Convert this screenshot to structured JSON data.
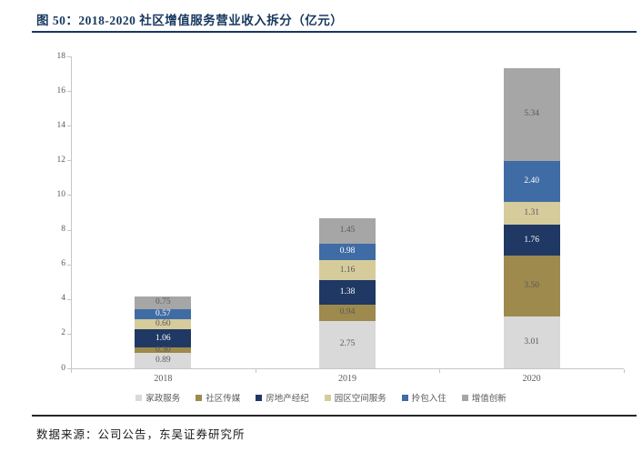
{
  "header": {
    "title": "图 50：2018-2020 社区增值服务营业收入拆分（亿元）"
  },
  "footer": {
    "source": "数据来源：公司公告，东吴证券研究所"
  },
  "colors": {
    "title_navy": "#17375e",
    "axis_gray": "#c6c6c6",
    "label_gray": "#595959",
    "divider_dark": "#262626"
  },
  "chart_data": {
    "type": "bar",
    "stacked": true,
    "title": "2018-2020 社区增值服务营业收入拆分（亿元）",
    "categories": [
      "2018",
      "2019",
      "2020"
    ],
    "series": [
      {
        "name": "家政服务",
        "color": "#d9d9d9",
        "label_color": "#595959",
        "values": [
          0.89,
          2.75,
          3.01
        ]
      },
      {
        "name": "社区传媒",
        "color": "#9d8a4c",
        "label_color": "#595959",
        "values": [
          0.3,
          0.94,
          3.5
        ]
      },
      {
        "name": "房地产经纪",
        "color": "#1f3864",
        "label_color": "#ffffff",
        "values": [
          1.06,
          1.38,
          1.76
        ]
      },
      {
        "name": "园区空间服务",
        "color": "#d6cb9b",
        "label_color": "#595959",
        "values": [
          0.6,
          1.16,
          1.31
        ]
      },
      {
        "name": "拎包入住",
        "color": "#3f6ca5",
        "label_color": "#ffffff",
        "values": [
          0.57,
          0.98,
          2.4
        ]
      },
      {
        "name": "增值创新",
        "color": "#a6a6a6",
        "label_color": "#595959",
        "values": [
          0.75,
          1.45,
          5.34
        ]
      }
    ],
    "ylim": [
      0,
      18
    ],
    "yticks": [
      0,
      2,
      4,
      6,
      8,
      10,
      12,
      14,
      16,
      18
    ],
    "grid": false,
    "legend_position": "bottom",
    "value_labels": "inside",
    "value_format_decimals": 2
  }
}
